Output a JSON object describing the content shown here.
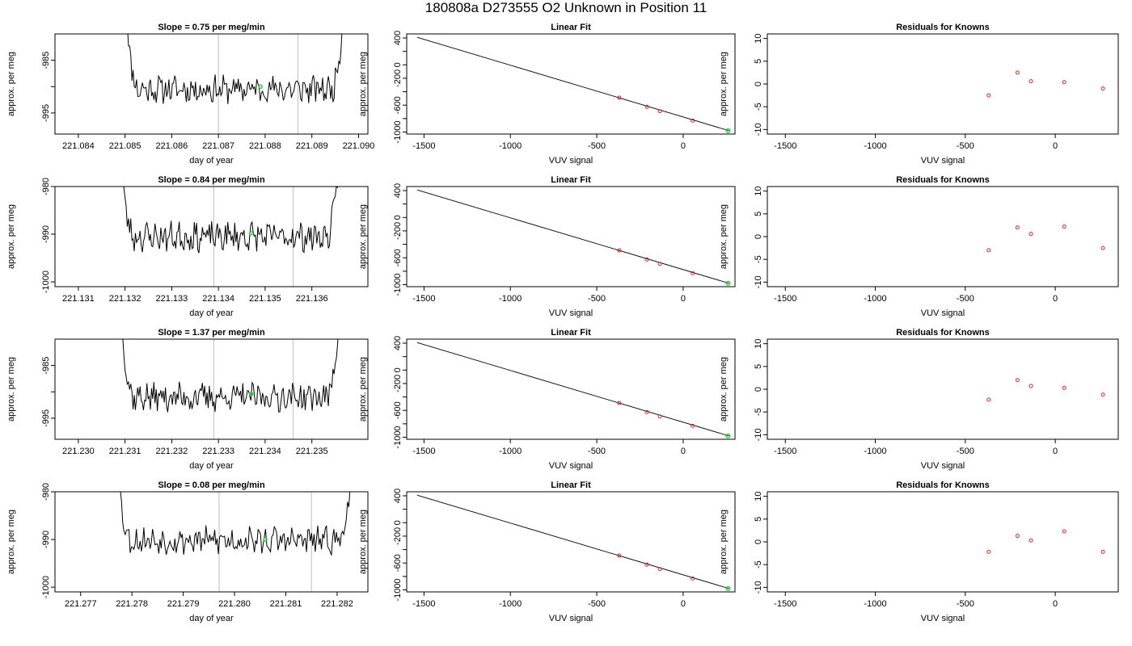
{
  "figure": {
    "title": "180808a     D273555   O2 Unknown in Position  11",
    "accent_colors": {
      "series": "#000000",
      "fit_points": "#d62728",
      "unknown_point": "#2ecc40",
      "marker_lines": "#c8c8c8"
    }
  },
  "chart_data": [
    {
      "type": "line",
      "row": 1,
      "title": "Slope =  0.75  per meg/min",
      "xlabel": "day of year",
      "ylabel": "approx. per meg",
      "xlim": [
        221.0835,
        221.0902
      ],
      "ylim": [
        -999,
        -980
      ],
      "xticks": [
        221.084,
        221.085,
        221.086,
        221.087,
        221.088,
        221.089,
        221.09
      ],
      "xtick_labels": [
        "221.084",
        "221.085",
        "221.086",
        "221.087",
        "221.088",
        "221.089",
        "221.090"
      ],
      "yticks": [
        -995,
        -990,
        -985
      ],
      "ytick_labels": [
        "-995",
        "",
        "-985"
      ],
      "x_start": 221.085,
      "x_end": 221.0897,
      "marker_lines_x": [
        221.087,
        221.0887
      ],
      "unknown_point": {
        "x": 221.0879,
        "y": -990.0
      },
      "series_seed": 11,
      "series_center": -990.5,
      "series_amp": 2.2
    },
    {
      "type": "scatter",
      "row": 1,
      "title": "Linear Fit",
      "xlabel": "VUV signal",
      "ylabel": "approx. per meg",
      "xlim": [
        -1600,
        300
      ],
      "ylim": [
        -1030,
        460
      ],
      "xticks": [
        -1500,
        -1000,
        -500,
        0
      ],
      "xtick_labels": [
        "-1500",
        "-1000",
        "-500",
        "0"
      ],
      "yticks": [
        -1000,
        -800,
        -600,
        -400,
        -200,
        0,
        200,
        400
      ],
      "ytick_labels": [
        "-1000",
        "",
        "-600",
        "",
        "-200",
        "0",
        "",
        "400"
      ],
      "fit_line": {
        "x": [
          -1540,
          265
        ],
        "y": [
          410,
          -980
        ]
      },
      "known_points": [
        {
          "x": -370,
          "y": -490
        },
        {
          "x": -210,
          "y": -625
        },
        {
          "x": -135,
          "y": -690
        },
        {
          "x": 55,
          "y": -830
        }
      ],
      "unknown_point": {
        "x": 260,
        "y": -980
      }
    },
    {
      "type": "scatter",
      "row": 1,
      "title": "Residuals for Knowns",
      "xlabel": "VUV signal",
      "ylabel": "approx. per meg",
      "xlim": [
        -1600,
        350
      ],
      "ylim": [
        -11,
        11
      ],
      "xticks": [
        -1500,
        -1000,
        -500,
        0
      ],
      "xtick_labels": [
        "-1500",
        "-1000",
        "-500",
        "0"
      ],
      "yticks": [
        -10,
        -5,
        0,
        5,
        10
      ],
      "ytick_labels": [
        "-10",
        "-5",
        "0",
        "5",
        "10"
      ],
      "points": [
        {
          "x": -370,
          "y": -2.5
        },
        {
          "x": -210,
          "y": 2.5
        },
        {
          "x": -135,
          "y": 0.6
        },
        {
          "x": 50,
          "y": 0.4
        },
        {
          "x": 265,
          "y": -1.0
        }
      ]
    },
    {
      "type": "line",
      "row": 2,
      "title": "Slope =  0.84  per meg/min",
      "xlabel": "day of year",
      "ylabel": "approx. per meg",
      "xlim": [
        221.1305,
        221.1372
      ],
      "ylim": [
        -1001,
        -980
      ],
      "xticks": [
        221.131,
        221.132,
        221.133,
        221.134,
        221.135,
        221.136
      ],
      "xtick_labels": [
        "221.131",
        "221.132",
        "221.133",
        "221.134",
        "221.135",
        "221.136"
      ],
      "yticks": [
        -1000,
        -990,
        -980
      ],
      "ytick_labels": [
        "-1000",
        "-990",
        "-980"
      ],
      "x_start": 221.1319,
      "x_end": 221.1366,
      "marker_lines_x": [
        221.1339,
        221.1356
      ],
      "unknown_point": {
        "x": 221.1347,
        "y": -989.8
      },
      "series_seed": 23,
      "series_center": -990.5,
      "series_amp": 2.6
    },
    {
      "type": "scatter",
      "row": 2,
      "title": "Linear Fit",
      "xlabel": "VUV signal",
      "ylabel": "approx. per meg",
      "xlim": [
        -1600,
        300
      ],
      "ylim": [
        -1030,
        460
      ],
      "xticks": [
        -1500,
        -1000,
        -500,
        0
      ],
      "xtick_labels": [
        "-1500",
        "-1000",
        "-500",
        "0"
      ],
      "yticks": [
        -1000,
        -800,
        -600,
        -400,
        -200,
        0,
        200,
        400
      ],
      "ytick_labels": [
        "-1000",
        "",
        "-600",
        "",
        "-200",
        "0",
        "",
        "400"
      ],
      "fit_line": {
        "x": [
          -1540,
          265
        ],
        "y": [
          410,
          -980
        ]
      },
      "known_points": [
        {
          "x": -370,
          "y": -490
        },
        {
          "x": -210,
          "y": -625
        },
        {
          "x": -135,
          "y": -690
        },
        {
          "x": 55,
          "y": -830
        }
      ],
      "unknown_point": {
        "x": 260,
        "y": -980
      }
    },
    {
      "type": "scatter",
      "row": 2,
      "title": "Residuals for Knowns",
      "xlabel": "VUV signal",
      "ylabel": "approx. per meg",
      "xlim": [
        -1600,
        350
      ],
      "ylim": [
        -11,
        11
      ],
      "xticks": [
        -1500,
        -1000,
        -500,
        0
      ],
      "xtick_labels": [
        "-1500",
        "-1000",
        "-500",
        "0"
      ],
      "yticks": [
        -10,
        -5,
        0,
        5,
        10
      ],
      "ytick_labels": [
        "-10",
        "-5",
        "0",
        "5",
        "10"
      ],
      "points": [
        {
          "x": -370,
          "y": -3.0
        },
        {
          "x": -210,
          "y": 2.0
        },
        {
          "x": -135,
          "y": 0.6
        },
        {
          "x": 50,
          "y": 2.2
        },
        {
          "x": 265,
          "y": -2.5
        }
      ]
    },
    {
      "type": "line",
      "row": 3,
      "title": "Slope =  1.37  per meg/min",
      "xlabel": "day of year",
      "ylabel": "approx. per meg",
      "xlim": [
        221.2295,
        221.2362
      ],
      "ylim": [
        -999,
        -980
      ],
      "xticks": [
        221.23,
        221.231,
        221.232,
        221.233,
        221.234,
        221.235
      ],
      "xtick_labels": [
        "221.230",
        "221.231",
        "221.232",
        "221.233",
        "221.234",
        "221.235"
      ],
      "yticks": [
        -995,
        -990,
        -985
      ],
      "ytick_labels": [
        "-995",
        "",
        "-985"
      ],
      "x_start": 221.2309,
      "x_end": 221.2356,
      "marker_lines_x": [
        221.2329,
        221.2346
      ],
      "unknown_point": {
        "x": 221.2337,
        "y": -990.4
      },
      "series_seed": 37,
      "series_center": -991.0,
      "series_amp": 2.3
    },
    {
      "type": "scatter",
      "row": 3,
      "title": "Linear Fit",
      "xlabel": "VUV signal",
      "ylabel": "approx. per meg",
      "xlim": [
        -1600,
        300
      ],
      "ylim": [
        -1030,
        460
      ],
      "xticks": [
        -1500,
        -1000,
        -500,
        0
      ],
      "xtick_labels": [
        "-1500",
        "-1000",
        "-500",
        "0"
      ],
      "yticks": [
        -1000,
        -800,
        -600,
        -400,
        -200,
        0,
        200,
        400
      ],
      "ytick_labels": [
        "-1000",
        "",
        "-600",
        "",
        "-200",
        "0",
        "",
        "400"
      ],
      "fit_line": {
        "x": [
          -1540,
          265
        ],
        "y": [
          410,
          -980
        ]
      },
      "known_points": [
        {
          "x": -370,
          "y": -490
        },
        {
          "x": -210,
          "y": -625
        },
        {
          "x": -135,
          "y": -690
        },
        {
          "x": 55,
          "y": -830
        }
      ],
      "unknown_point": {
        "x": 260,
        "y": -980
      }
    },
    {
      "type": "scatter",
      "row": 3,
      "title": "Residuals for Knowns",
      "xlabel": "VUV signal",
      "ylabel": "approx. per meg",
      "xlim": [
        -1600,
        350
      ],
      "ylim": [
        -11,
        11
      ],
      "xticks": [
        -1500,
        -1000,
        -500,
        0
      ],
      "xtick_labels": [
        "-1500",
        "-1000",
        "-500",
        "0"
      ],
      "yticks": [
        -10,
        -5,
        0,
        5,
        10
      ],
      "ytick_labels": [
        "-10",
        "-5",
        "0",
        "5",
        "10"
      ],
      "points": [
        {
          "x": -370,
          "y": -2.3
        },
        {
          "x": -210,
          "y": 2.0
        },
        {
          "x": -135,
          "y": 0.7
        },
        {
          "x": 50,
          "y": 0.3
        },
        {
          "x": 265,
          "y": -1.2
        }
      ]
    },
    {
      "type": "line",
      "row": 4,
      "title": "Slope =  0.08  per meg/min",
      "xlabel": "day of year",
      "ylabel": "approx. per meg",
      "xlim": [
        221.2765,
        221.2826
      ],
      "ylim": [
        -1001,
        -980
      ],
      "xticks": [
        221.277,
        221.278,
        221.279,
        221.28,
        221.281,
        221.282
      ],
      "xtick_labels": [
        "221.277",
        "221.278",
        "221.279",
        "221.280",
        "221.281",
        "221.282"
      ],
      "yticks": [
        -1000,
        -990,
        -980
      ],
      "ytick_labels": [
        "-1000",
        "-990",
        "-980"
      ],
      "x_start": 221.2777,
      "x_end": 221.2823,
      "marker_lines_x": [
        221.2797,
        221.2815
      ],
      "unknown_point": {
        "x": 221.2806,
        "y": -990.0
      },
      "series_seed": 53,
      "series_center": -990.2,
      "series_amp": 2.4
    },
    {
      "type": "scatter",
      "row": 4,
      "title": "Linear Fit",
      "xlabel": "VUV signal",
      "ylabel": "approx. per meg",
      "xlim": [
        -1600,
        300
      ],
      "ylim": [
        -1030,
        460
      ],
      "xticks": [
        -1500,
        -1000,
        -500,
        0
      ],
      "xtick_labels": [
        "-1500",
        "-1000",
        "-500",
        "0"
      ],
      "yticks": [
        -1000,
        -800,
        -600,
        -400,
        -200,
        0,
        200,
        400
      ],
      "ytick_labels": [
        "-1000",
        "",
        "-600",
        "",
        "-200",
        "0",
        "",
        "400"
      ],
      "fit_line": {
        "x": [
          -1540,
          265
        ],
        "y": [
          410,
          -980
        ]
      },
      "known_points": [
        {
          "x": -370,
          "y": -490
        },
        {
          "x": -210,
          "y": -625
        },
        {
          "x": -135,
          "y": -690
        },
        {
          "x": 55,
          "y": -830
        }
      ],
      "unknown_point": {
        "x": 260,
        "y": -980
      }
    },
    {
      "type": "scatter",
      "row": 4,
      "title": "Residuals for Knowns",
      "xlabel": "VUV signal",
      "ylabel": "approx. per meg",
      "xlim": [
        -1600,
        350
      ],
      "ylim": [
        -11,
        11
      ],
      "xticks": [
        -1500,
        -1000,
        -500,
        0
      ],
      "xtick_labels": [
        "-1500",
        "-1000",
        "-500",
        "0"
      ],
      "yticks": [
        -10,
        -5,
        0,
        5,
        10
      ],
      "ytick_labels": [
        "-10",
        "-5",
        "0",
        "5",
        "10"
      ],
      "points": [
        {
          "x": -370,
          "y": -2.2
        },
        {
          "x": -210,
          "y": 1.3
        },
        {
          "x": -135,
          "y": 0.3
        },
        {
          "x": 50,
          "y": 2.3
        },
        {
          "x": 265,
          "y": -2.2
        }
      ]
    }
  ]
}
